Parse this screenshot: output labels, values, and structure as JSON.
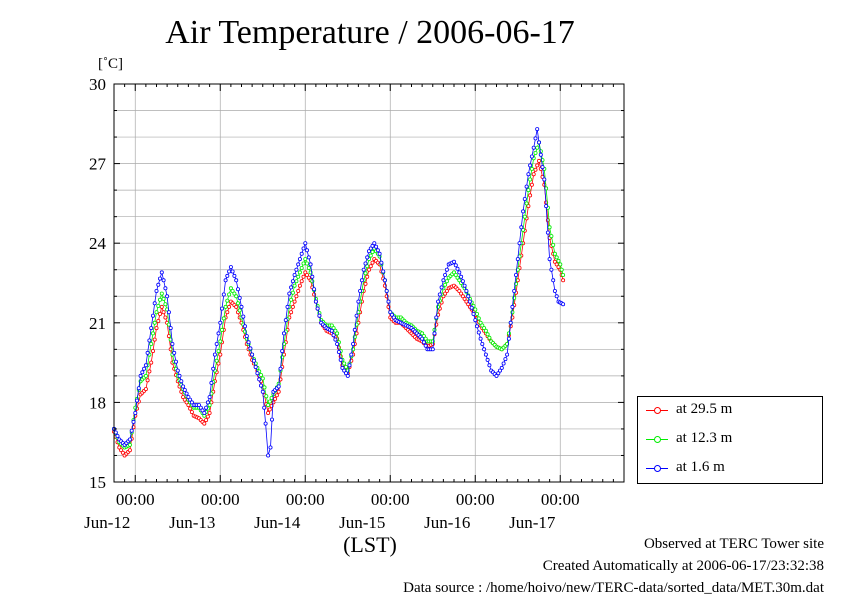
{
  "title": "Air Temperature / 2006-06-17",
  "unit": "[˚C]",
  "footer": {
    "line1": "Observed at TERC Tower site",
    "line2": "Created Automatically at 2006-06-17/23:32:38",
    "line3": "Data source : /home/hoivo/new/TERC-data/sorted_data/MET.30m.dat"
  },
  "chart_data": {
    "type": "line",
    "xlabel": "(LST)",
    "ylabel": "[˚C]",
    "ylim": [
      15,
      30
    ],
    "xlim": [
      0,
      144
    ],
    "x_unit": "hours from 2006-06-11 18:00 LST",
    "y_ticks": [
      "15",
      "18",
      "21",
      "24",
      "27",
      "30"
    ],
    "x_ticks": [
      {
        "pos": 6,
        "label": "00:00",
        "day": "Jun-12"
      },
      {
        "pos": 30,
        "label": "00:00",
        "day": "Jun-13"
      },
      {
        "pos": 54,
        "label": "00:00",
        "day": "Jun-14"
      },
      {
        "pos": 78,
        "label": "00:00",
        "day": "Jun-15"
      },
      {
        "pos": 102,
        "label": "00:00",
        "day": "Jun-16"
      },
      {
        "pos": 126,
        "label": "00:00",
        "day": "Jun-17"
      }
    ],
    "grid": true,
    "legend_position": "bottom-right, outside plot",
    "series": [
      {
        "name": "at 29.5 m",
        "color": "#ff0000",
        "points": [
          [
            0,
            16.9
          ],
          [
            1.5,
            16.3
          ],
          [
            3,
            16.0
          ],
          [
            4.5,
            16.2
          ],
          [
            6,
            17.5
          ],
          [
            7.5,
            18.3
          ],
          [
            9,
            18.5
          ],
          [
            10.5,
            19.5
          ],
          [
            12,
            20.8
          ],
          [
            13.5,
            21.6
          ],
          [
            15,
            21.0
          ],
          [
            16.5,
            19.5
          ],
          [
            18,
            18.8
          ],
          [
            19.5,
            18.2
          ],
          [
            21,
            17.9
          ],
          [
            22.5,
            17.5
          ],
          [
            24,
            17.4
          ],
          [
            25.5,
            17.2
          ],
          [
            27,
            17.6
          ],
          [
            28.5,
            18.8
          ],
          [
            30,
            19.8
          ],
          [
            31.5,
            21.2
          ],
          [
            33,
            21.8
          ],
          [
            34.5,
            21.6
          ],
          [
            36,
            21.0
          ],
          [
            37.5,
            20.2
          ],
          [
            39,
            19.6
          ],
          [
            40.5,
            19.2
          ],
          [
            42,
            18.6
          ],
          [
            43.5,
            17.6
          ],
          [
            45,
            18.0
          ],
          [
            46.5,
            18.4
          ],
          [
            48,
            19.8
          ],
          [
            49.5,
            21.2
          ],
          [
            51,
            21.8
          ],
          [
            52.5,
            22.4
          ],
          [
            54,
            22.9
          ],
          [
            55.5,
            22.6
          ],
          [
            57,
            21.8
          ],
          [
            58.5,
            21.0
          ],
          [
            60,
            20.7
          ],
          [
            61.5,
            20.6
          ],
          [
            63,
            20.4
          ],
          [
            64.5,
            19.4
          ],
          [
            66,
            19.1
          ],
          [
            67.5,
            19.8
          ],
          [
            69,
            21.0
          ],
          [
            70.5,
            22.2
          ],
          [
            72,
            23.0
          ],
          [
            73.5,
            23.4
          ],
          [
            75,
            23.2
          ],
          [
            76.5,
            22.4
          ],
          [
            78,
            21.2
          ],
          [
            79.5,
            21.0
          ],
          [
            81,
            21.0
          ],
          [
            82.5,
            20.8
          ],
          [
            84,
            20.6
          ],
          [
            85.5,
            20.4
          ],
          [
            87,
            20.3
          ],
          [
            88.5,
            20.1
          ],
          [
            90,
            20.2
          ],
          [
            91.5,
            21.3
          ],
          [
            93,
            22.0
          ],
          [
            94.5,
            22.3
          ],
          [
            96,
            22.4
          ],
          [
            97.5,
            22.2
          ],
          [
            99,
            21.9
          ],
          [
            100.5,
            21.6
          ],
          [
            102,
            21.3
          ],
          [
            103.5,
            20.9
          ],
          [
            105,
            20.6
          ],
          [
            106.5,
            20.3
          ],
          [
            108,
            20.1
          ],
          [
            109.5,
            20.0
          ],
          [
            111,
            20.2
          ],
          [
            112.5,
            21.2
          ],
          [
            114,
            22.6
          ],
          [
            115.5,
            24.0
          ],
          [
            117,
            25.4
          ],
          [
            118.5,
            26.6
          ],
          [
            120,
            27.1
          ],
          [
            121.5,
            26.2
          ],
          [
            123,
            24.2
          ],
          [
            124.5,
            23.3
          ],
          [
            126,
            23.0
          ],
          [
            126.8,
            22.6
          ]
        ]
      },
      {
        "name": "at 12.3 m",
        "color": "#00ee00",
        "points": [
          [
            0,
            17.0
          ],
          [
            1.5,
            16.5
          ],
          [
            3,
            16.3
          ],
          [
            4.5,
            16.4
          ],
          [
            6,
            17.8
          ],
          [
            7.5,
            18.8
          ],
          [
            9,
            19.0
          ],
          [
            10.5,
            20.2
          ],
          [
            12,
            21.4
          ],
          [
            13.5,
            22.1
          ],
          [
            15,
            21.5
          ],
          [
            16.5,
            19.8
          ],
          [
            18,
            19.0
          ],
          [
            19.5,
            18.5
          ],
          [
            21,
            18.1
          ],
          [
            22.5,
            17.8
          ],
          [
            24,
            17.8
          ],
          [
            25.5,
            17.5
          ],
          [
            27,
            17.9
          ],
          [
            28.5,
            19.2
          ],
          [
            30,
            20.3
          ],
          [
            31.5,
            21.6
          ],
          [
            33,
            22.3
          ],
          [
            34.5,
            22.0
          ],
          [
            36,
            21.2
          ],
          [
            37.5,
            20.4
          ],
          [
            39,
            19.8
          ],
          [
            40.5,
            19.3
          ],
          [
            42,
            18.9
          ],
          [
            43.5,
            17.9
          ],
          [
            45,
            18.3
          ],
          [
            46.5,
            18.7
          ],
          [
            48,
            20.2
          ],
          [
            49.5,
            21.6
          ],
          [
            51,
            22.4
          ],
          [
            52.5,
            22.9
          ],
          [
            54,
            23.4
          ],
          [
            55.5,
            22.9
          ],
          [
            57,
            21.9
          ],
          [
            58.5,
            21.1
          ],
          [
            60,
            20.9
          ],
          [
            61.5,
            20.9
          ],
          [
            63,
            20.6
          ],
          [
            64.5,
            19.6
          ],
          [
            66,
            19.2
          ],
          [
            67.5,
            20.0
          ],
          [
            69,
            21.4
          ],
          [
            70.5,
            22.6
          ],
          [
            72,
            23.4
          ],
          [
            73.5,
            23.8
          ],
          [
            75,
            23.5
          ],
          [
            76.5,
            22.6
          ],
          [
            78,
            21.4
          ],
          [
            79.5,
            21.2
          ],
          [
            81,
            21.2
          ],
          [
            82.5,
            21.0
          ],
          [
            84,
            20.9
          ],
          [
            85.5,
            20.7
          ],
          [
            87,
            20.6
          ],
          [
            88.5,
            20.3
          ],
          [
            90,
            20.3
          ],
          [
            91.5,
            21.6
          ],
          [
            93,
            22.3
          ],
          [
            94.5,
            22.7
          ],
          [
            96,
            22.9
          ],
          [
            97.5,
            22.6
          ],
          [
            99,
            22.3
          ],
          [
            100.5,
            21.9
          ],
          [
            102,
            21.5
          ],
          [
            103.5,
            21.0
          ],
          [
            105,
            20.7
          ],
          [
            106.5,
            20.3
          ],
          [
            108,
            20.1
          ],
          [
            109.5,
            20.0
          ],
          [
            111,
            20.2
          ],
          [
            112.5,
            21.4
          ],
          [
            114,
            23.0
          ],
          [
            115.5,
            24.5
          ],
          [
            117,
            26.0
          ],
          [
            118.5,
            27.2
          ],
          [
            120,
            27.8
          ],
          [
            121.5,
            26.8
          ],
          [
            123,
            24.6
          ],
          [
            124.5,
            23.6
          ],
          [
            126,
            23.2
          ],
          [
            126.8,
            22.8
          ]
        ]
      },
      {
        "name": "at 1.6 m",
        "color": "#0000ff",
        "points": [
          [
            0,
            17.0
          ],
          [
            1.5,
            16.6
          ],
          [
            3,
            16.4
          ],
          [
            4.5,
            16.6
          ],
          [
            6,
            17.6
          ],
          [
            7.5,
            19.0
          ],
          [
            9,
            19.4
          ],
          [
            10.5,
            20.8
          ],
          [
            12,
            22.2
          ],
          [
            13.5,
            22.9
          ],
          [
            15,
            22.0
          ],
          [
            16.5,
            20.2
          ],
          [
            18,
            19.2
          ],
          [
            19.5,
            18.6
          ],
          [
            21,
            18.2
          ],
          [
            22.5,
            17.9
          ],
          [
            24,
            17.9
          ],
          [
            25.5,
            17.6
          ],
          [
            27,
            18.2
          ],
          [
            28.5,
            19.8
          ],
          [
            30,
            21.0
          ],
          [
            31.5,
            22.6
          ],
          [
            33,
            23.1
          ],
          [
            34.5,
            22.6
          ],
          [
            36,
            21.6
          ],
          [
            37.5,
            20.5
          ],
          [
            39,
            19.8
          ],
          [
            40.5,
            19.1
          ],
          [
            42,
            18.4
          ],
          [
            42.8,
            17.2
          ],
          [
            43.5,
            16.0
          ],
          [
            44.2,
            16.3
          ],
          [
            45,
            18.4
          ],
          [
            46.5,
            18.6
          ],
          [
            48,
            20.6
          ],
          [
            49.5,
            22.1
          ],
          [
            51,
            22.8
          ],
          [
            52.5,
            23.4
          ],
          [
            54,
            24.0
          ],
          [
            55.5,
            23.2
          ],
          [
            57,
            21.8
          ],
          [
            58.5,
            21.0
          ],
          [
            60,
            20.8
          ],
          [
            61.5,
            20.7
          ],
          [
            63,
            20.2
          ],
          [
            64.5,
            19.3
          ],
          [
            66,
            19.0
          ],
          [
            67.5,
            20.2
          ],
          [
            69,
            21.8
          ],
          [
            70.5,
            23.0
          ],
          [
            72,
            23.7
          ],
          [
            73.5,
            24.0
          ],
          [
            75,
            23.6
          ],
          [
            76.5,
            22.6
          ],
          [
            78,
            21.4
          ],
          [
            79.5,
            21.1
          ],
          [
            81,
            21.0
          ],
          [
            82.5,
            20.9
          ],
          [
            84,
            20.8
          ],
          [
            85.5,
            20.6
          ],
          [
            87,
            20.4
          ],
          [
            88.5,
            20.0
          ],
          [
            90,
            20.0
          ],
          [
            91.5,
            21.8
          ],
          [
            93,
            22.6
          ],
          [
            94.5,
            23.2
          ],
          [
            96,
            23.3
          ],
          [
            97.5,
            22.9
          ],
          [
            99,
            22.4
          ],
          [
            100.5,
            21.8
          ],
          [
            102,
            21.1
          ],
          [
            103.5,
            20.4
          ],
          [
            105,
            19.8
          ],
          [
            106.5,
            19.2
          ],
          [
            108,
            19.0
          ],
          [
            109.5,
            19.3
          ],
          [
            111,
            19.8
          ],
          [
            112.5,
            21.6
          ],
          [
            114,
            23.4
          ],
          [
            115.5,
            25.2
          ],
          [
            117,
            26.6
          ],
          [
            118.5,
            27.6
          ],
          [
            119.5,
            28.3
          ],
          [
            120,
            27.8
          ],
          [
            121.5,
            26.4
          ],
          [
            123,
            23.4
          ],
          [
            124.5,
            22.2
          ],
          [
            125.5,
            21.8
          ],
          [
            126.8,
            21.7
          ]
        ]
      }
    ]
  }
}
